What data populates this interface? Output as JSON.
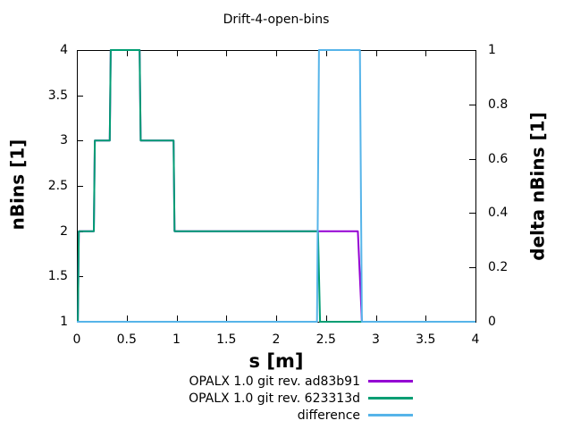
{
  "title": "Drift-4-open-bins",
  "axes": {
    "x": {
      "label": "s [m]",
      "tick_labels": [
        "0",
        "0.5",
        "1",
        "1.5",
        "2",
        "2.5",
        "3",
        "3.5",
        "4"
      ],
      "tick_values": [
        0,
        0.5,
        1,
        1.5,
        2,
        2.5,
        3,
        3.5,
        4
      ]
    },
    "y_left": {
      "label": "nBins [1]",
      "tick_labels": [
        "1",
        "1.5",
        "2",
        "2.5",
        "3",
        "3.5",
        "4"
      ],
      "tick_values": [
        1,
        1.5,
        2,
        2.5,
        3,
        3.5,
        4
      ]
    },
    "y_right": {
      "label": "delta nBins [1]",
      "tick_labels": [
        "0",
        "0.2",
        "0.4",
        "0.6",
        "0.8",
        "1"
      ],
      "tick_values": [
        0,
        0.2,
        0.4,
        0.6,
        0.8,
        1
      ]
    }
  },
  "colors": {
    "axis": "#000000",
    "background": "#ffffff",
    "series_purple": "#9400D3",
    "series_green": "#009E73",
    "series_blue": "#56B4E9"
  },
  "chart_data": {
    "type": "line",
    "title": "Drift-4-open-bins",
    "xlabel": "s [m]",
    "ylabel_left": "nBins [1]",
    "ylabel_right": "delta nBins [1]",
    "xlim": [
      0,
      4
    ],
    "ylim_left": [
      1,
      4
    ],
    "ylim_right": [
      0,
      1
    ],
    "grid": false,
    "legend_position": "below-plot-right",
    "series": [
      {
        "name": "OPALX 1.0 git rev. ad83b91",
        "color": "#9400D3",
        "axis": "left",
        "style": "steps",
        "points": [
          [
            0,
            1
          ],
          [
            0.01,
            1
          ],
          [
            0.02,
            2
          ],
          [
            0.17,
            2
          ],
          [
            0.18,
            3
          ],
          [
            0.33,
            3
          ],
          [
            0.34,
            4
          ],
          [
            0.63,
            4
          ],
          [
            0.64,
            3
          ],
          [
            0.97,
            3
          ],
          [
            0.98,
            2
          ],
          [
            2.82,
            2
          ],
          [
            2.86,
            1
          ],
          [
            4,
            1
          ]
        ]
      },
      {
        "name": "OPALX 1.0 git rev. 623313d",
        "color": "#009E73",
        "axis": "left",
        "style": "steps",
        "points": [
          [
            0,
            1
          ],
          [
            0.01,
            1
          ],
          [
            0.02,
            2
          ],
          [
            0.17,
            2
          ],
          [
            0.18,
            3
          ],
          [
            0.33,
            3
          ],
          [
            0.34,
            4
          ],
          [
            0.63,
            4
          ],
          [
            0.64,
            3
          ],
          [
            0.97,
            3
          ],
          [
            0.98,
            2
          ],
          [
            2.42,
            2
          ],
          [
            2.44,
            1
          ],
          [
            4,
            1
          ]
        ]
      },
      {
        "name": "difference",
        "color": "#56B4E9",
        "axis": "right",
        "style": "steps",
        "points": [
          [
            0,
            0
          ],
          [
            2.41,
            0
          ],
          [
            2.43,
            1
          ],
          [
            2.84,
            1
          ],
          [
            2.86,
            0
          ],
          [
            4,
            0
          ]
        ]
      }
    ]
  }
}
